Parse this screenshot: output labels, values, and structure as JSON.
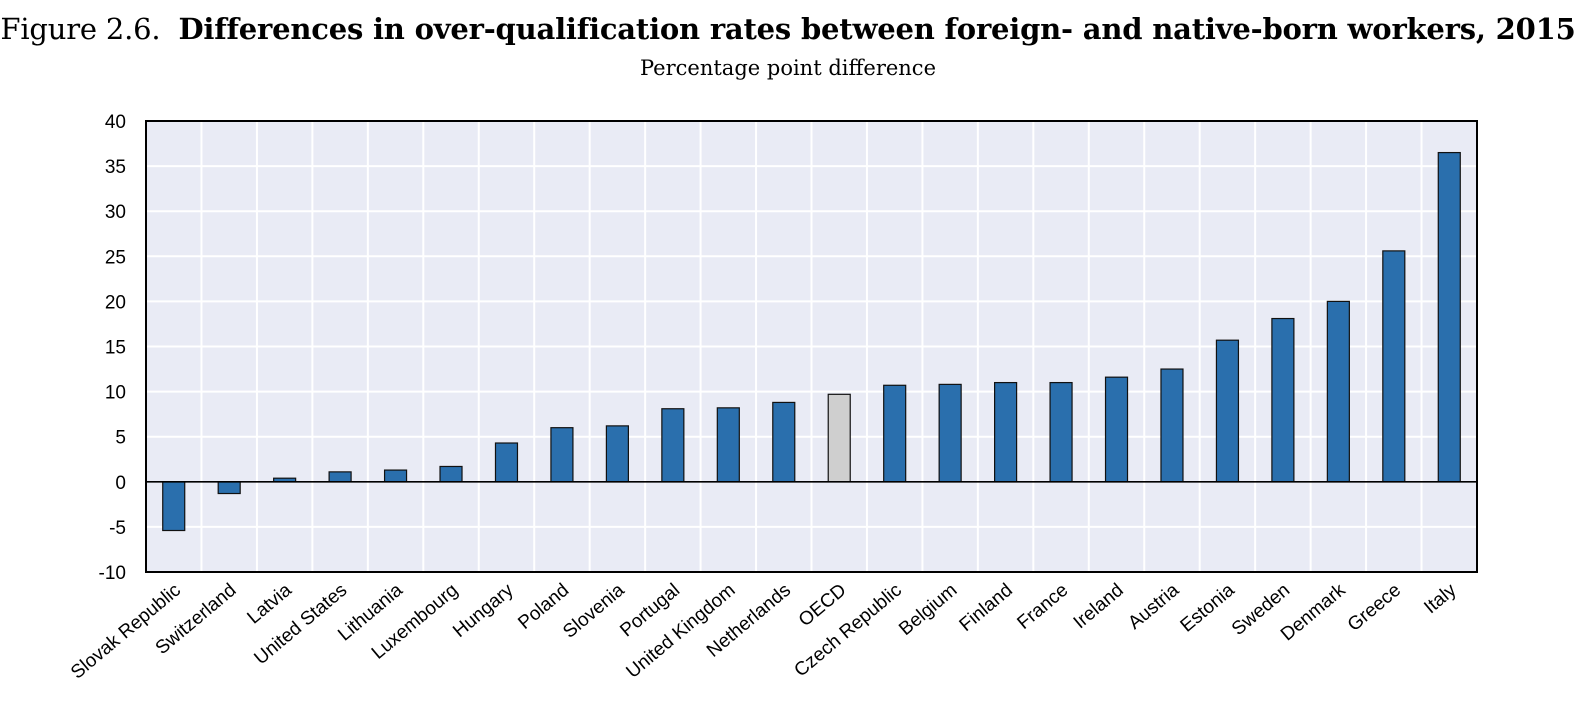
{
  "figure": {
    "label": "Figure 2.6.",
    "title": "Differences in over-qualification rates between foreign- and native-born workers, 2015",
    "subtitle": "Percentage point difference"
  },
  "colors": {
    "bar": "#2a6fad",
    "highlight": "#cfcfcf",
    "plot_bg": "#e9ebf5",
    "grid": "#ffffff",
    "frame": "#000000"
  },
  "chart_data": {
    "type": "bar",
    "title": "Differences in over-qualification rates between foreign- and native-born workers, 2015",
    "subtitle": "Percentage point difference",
    "xlabel": "",
    "ylabel": "",
    "ylim": [
      -10,
      40
    ],
    "yticks": [
      40,
      35,
      30,
      25,
      20,
      15,
      10,
      5,
      0,
      -5,
      -10
    ],
    "grid": true,
    "highlight_category": "OECD",
    "categories": [
      "Slovak Republic",
      "Switzerland",
      "Latvia",
      "United States",
      "Lithuania",
      "Luxembourg",
      "Hungary",
      "Poland",
      "Slovenia",
      "Portugal",
      "United Kingdom",
      "Netherlands",
      "OECD",
      "Czech Republic",
      "Belgium",
      "Finland",
      "France",
      "Ireland",
      "Austria",
      "Estonia",
      "Sweden",
      "Denmark",
      "Greece",
      "Italy"
    ],
    "values": [
      -5.4,
      -1.3,
      0.4,
      1.1,
      1.3,
      1.7,
      4.3,
      6.0,
      6.2,
      8.1,
      8.2,
      8.8,
      9.7,
      10.7,
      10.8,
      11.0,
      11.0,
      11.6,
      12.5,
      15.7,
      18.1,
      20.0,
      25.6,
      36.5
    ]
  }
}
